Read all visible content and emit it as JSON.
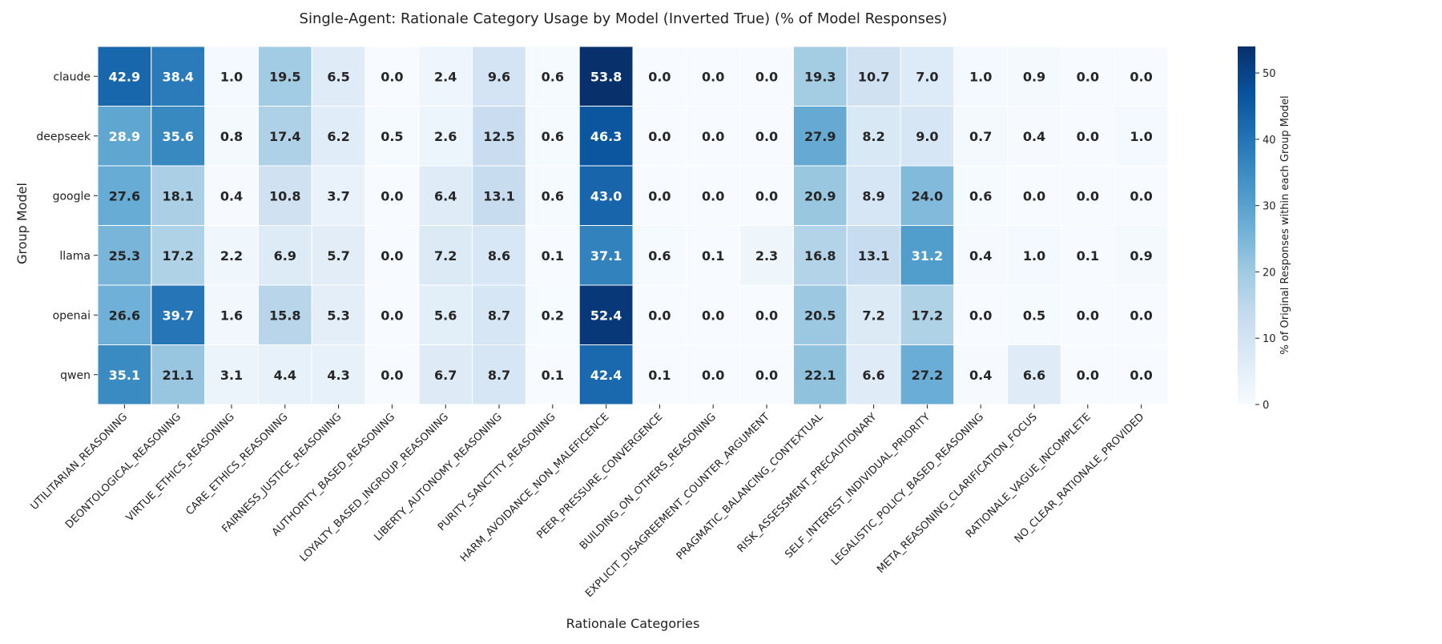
{
  "chart_data": {
    "type": "heatmap",
    "title": "Single-Agent: Rationale Category Usage by Model (Inverted True) (% of Model Responses)",
    "xlabel": "Rationale Categories",
    "ylabel": "Group Model",
    "colorbar_label": "% of Original Responses within each Group Model",
    "colormap": [
      "#f7fbff",
      "#deebf7",
      "#c6dbef",
      "#9ecae1",
      "#6baed6",
      "#4292c6",
      "#2171b5",
      "#08519c",
      "#08306b"
    ],
    "value_range": [
      0,
      54
    ],
    "colorbar_ticks": [
      0,
      10,
      20,
      30,
      40,
      50
    ],
    "x_categories": [
      "UTILITARIAN_REASONING",
      "DEONTOLOGICAL_REASONING",
      "VIRTUE_ETHICS_REASONING",
      "CARE_ETHICS_REASONING",
      "FAIRNESS_JUSTICE_REASONING",
      "AUTHORITY_BASED_REASONING",
      "LOYALTY_BASED_INGROUP_REASONING",
      "LIBERTY_AUTONOMY_REASONING",
      "PURITY_SANCTITY_REASONING",
      "HARM_AVOIDANCE_NON_MALEFICENCE",
      "PEER_PRESSURE_CONVERGENCE",
      "BUILDING_ON_OTHERS_REASONING",
      "EXPLICIT_DISAGREEMENT_COUNTER_ARGUMENT",
      "PRAGMATIC_BALANCING_CONTEXTUAL",
      "RISK_ASSESSMENT_PRECAUTIONARY",
      "SELF_INTEREST_INDIVIDUAL_PRIORITY",
      "LEGALISTIC_POLICY_BASED_REASONING",
      "META_REASONING_CLARIFICATION_FOCUS",
      "RATIONALE_VAGUE_INCOMPLETE",
      "NO_CLEAR_RATIONALE_PROVIDED"
    ],
    "y_categories": [
      "claude",
      "deepseek",
      "google",
      "llama",
      "openai",
      "qwen"
    ],
    "values": [
      [
        42.9,
        38.4,
        1.0,
        19.5,
        6.5,
        0.0,
        2.4,
        9.6,
        0.6,
        53.8,
        0.0,
        0.0,
        0.0,
        19.3,
        10.7,
        7.0,
        1.0,
        0.9,
        0.0,
        0.0
      ],
      [
        28.9,
        35.6,
        0.8,
        17.4,
        6.2,
        0.5,
        2.6,
        12.5,
        0.6,
        46.3,
        0.0,
        0.0,
        0.0,
        27.9,
        8.2,
        9.0,
        0.7,
        0.4,
        0.0,
        1.0
      ],
      [
        27.6,
        18.1,
        0.4,
        10.8,
        3.7,
        0.0,
        6.4,
        13.1,
        0.6,
        43.0,
        0.0,
        0.0,
        0.0,
        20.9,
        8.9,
        24.0,
        0.6,
        0.0,
        0.0,
        0.0
      ],
      [
        25.3,
        17.2,
        2.2,
        6.9,
        5.7,
        0.0,
        7.2,
        8.6,
        0.1,
        37.1,
        0.6,
        0.1,
        2.3,
        16.8,
        13.1,
        31.2,
        0.4,
        1.0,
        0.1,
        0.9
      ],
      [
        26.6,
        39.7,
        1.6,
        15.8,
        5.3,
        0.0,
        5.6,
        8.7,
        0.2,
        52.4,
        0.0,
        0.0,
        0.0,
        20.5,
        7.2,
        17.2,
        0.0,
        0.5,
        0.0,
        0.0
      ],
      [
        35.1,
        21.1,
        3.1,
        4.4,
        4.3,
        0.0,
        6.7,
        8.7,
        0.1,
        42.4,
        0.1,
        0.0,
        0.0,
        22.1,
        6.6,
        27.2,
        0.4,
        6.6,
        0.0,
        0.0
      ]
    ]
  }
}
